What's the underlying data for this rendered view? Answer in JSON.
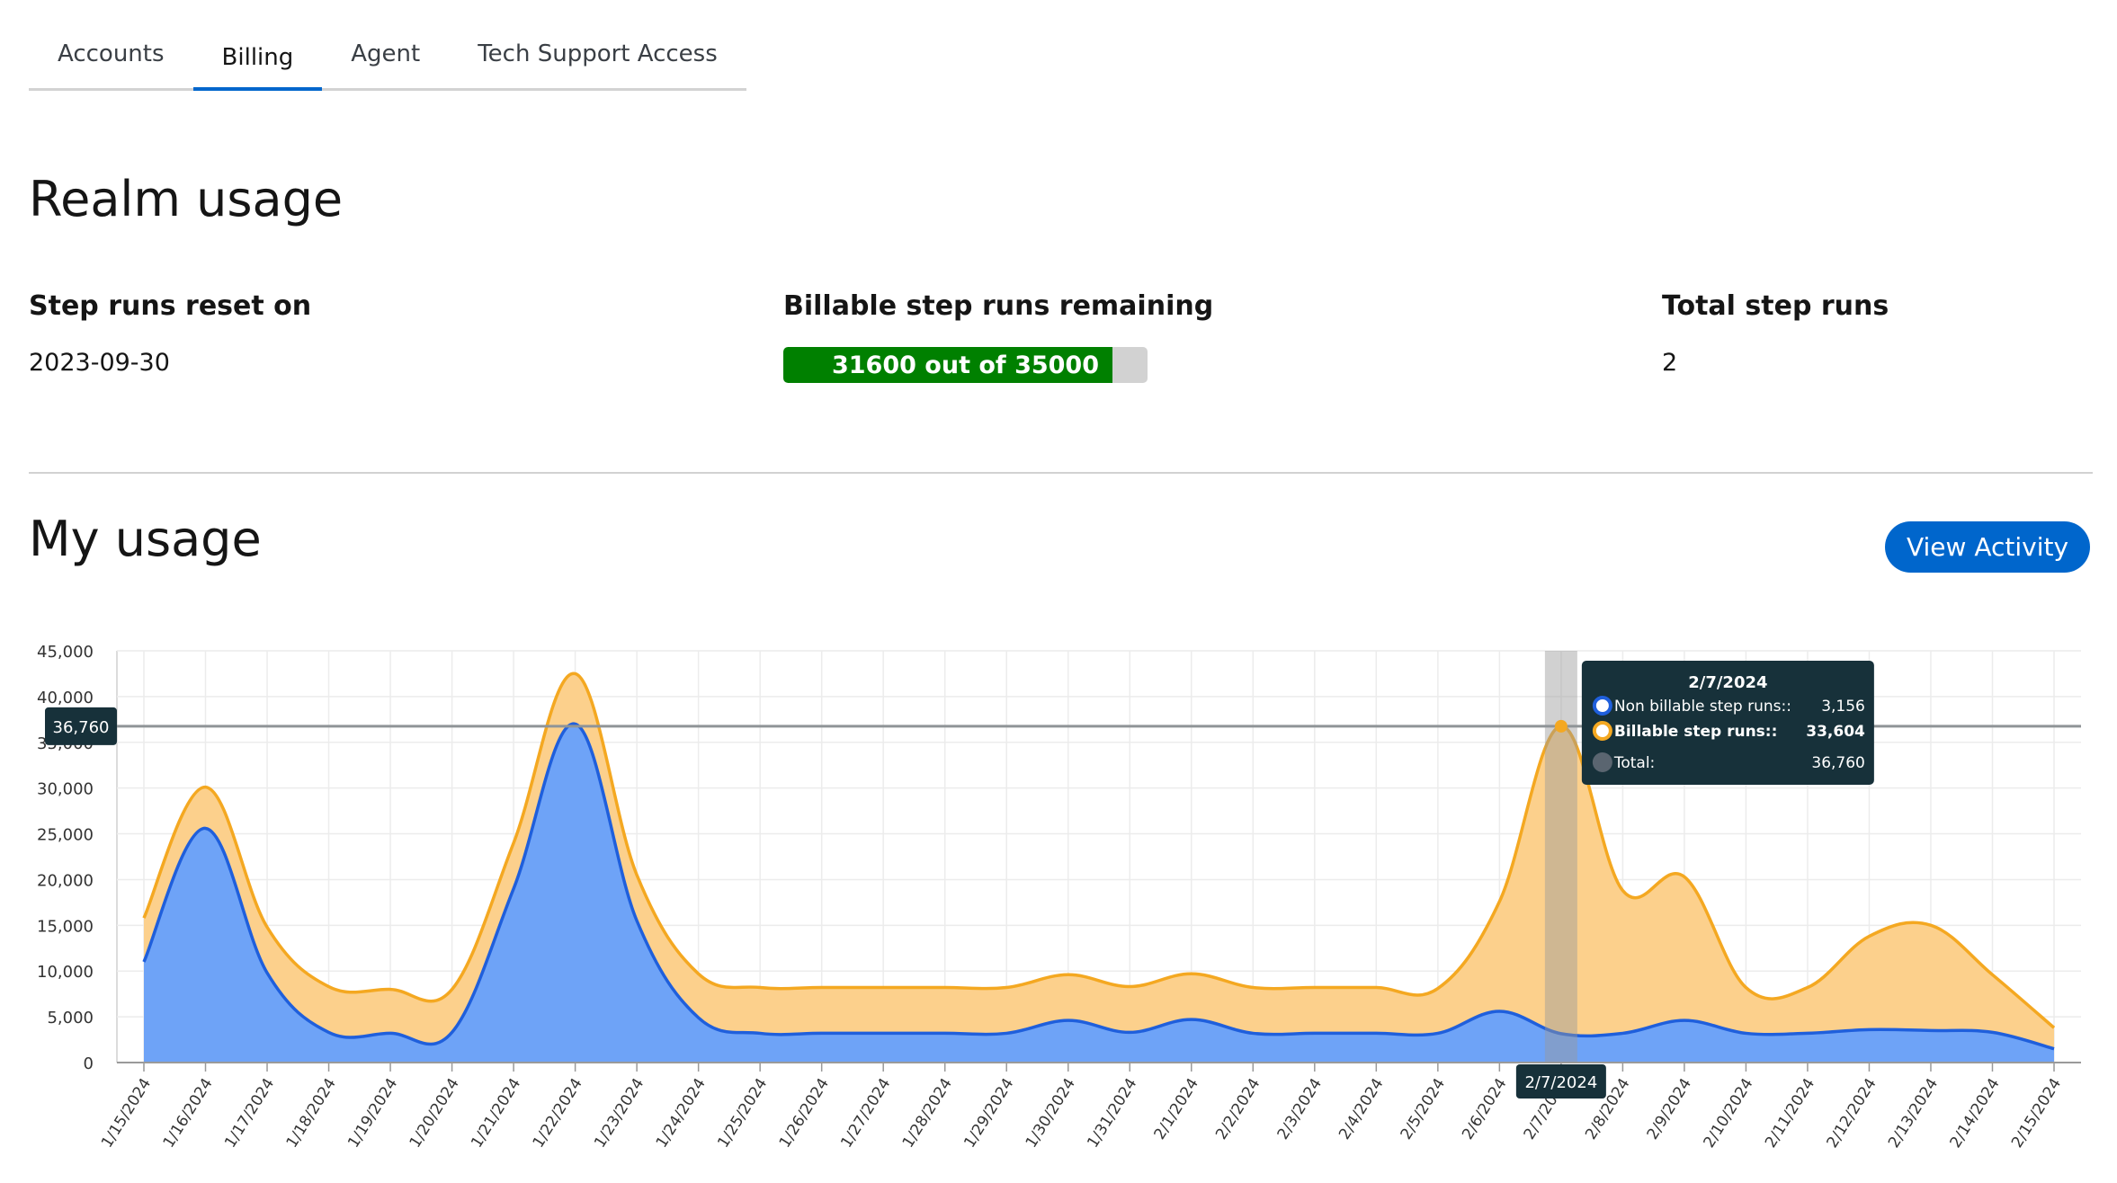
{
  "tabs": [
    {
      "label": "Accounts",
      "active": false
    },
    {
      "label": "Billing",
      "active": true
    },
    {
      "label": "Agent",
      "active": false
    },
    {
      "label": "Tech Support Access",
      "active": false
    }
  ],
  "realm": {
    "title": "Realm usage",
    "reset_label": "Step runs reset on",
    "reset_value": "2023-09-30",
    "billable_label": "Billable step runs remaining",
    "billable_text": "31600 out of 35000",
    "billable_remaining": 31600,
    "billable_total": 35000,
    "total_label": "Total step runs",
    "total_value": "2"
  },
  "my_usage": {
    "title": "My usage",
    "view_activity_label": "View Activity"
  },
  "colors": {
    "accent": "#0066cc",
    "progress": "#008000",
    "billable": "#f4a821",
    "non_billable": "#1f5fdc"
  },
  "chart_data": {
    "type": "area",
    "stacked": true,
    "categories": [
      "1/15/2024",
      "1/16/2024",
      "1/17/2024",
      "1/18/2024",
      "1/19/2024",
      "1/20/2024",
      "1/21/2024",
      "1/22/2024",
      "1/23/2024",
      "1/24/2024",
      "1/25/2024",
      "1/26/2024",
      "1/27/2024",
      "1/28/2024",
      "1/29/2024",
      "1/30/2024",
      "1/31/2024",
      "2/1/2024",
      "2/2/2024",
      "2/3/2024",
      "2/4/2024",
      "2/5/2024",
      "2/6/2024",
      "2/7/2024",
      "2/8/2024",
      "2/9/2024",
      "2/10/2024",
      "2/11/2024",
      "2/12/2024",
      "2/13/2024",
      "2/14/2024",
      "2/15/2024"
    ],
    "series": [
      {
        "name": "Non billable step runs:",
        "values": [
          11000,
          25600,
          9800,
          3300,
          3200,
          3300,
          19000,
          37000,
          15500,
          4900,
          3200,
          3200,
          3200,
          3200,
          3200,
          4600,
          3300,
          4700,
          3200,
          3200,
          3200,
          3200,
          5600,
          3156,
          3200,
          4600,
          3200,
          3200,
          3600,
          3500,
          3300,
          1500
        ]
      },
      {
        "name": "Billable step runs:",
        "values": [
          4800,
          4500,
          5000,
          5000,
          4800,
          4700,
          5000,
          5500,
          5000,
          4800,
          5000,
          5000,
          5000,
          5000,
          5000,
          5000,
          5000,
          5000,
          5000,
          5000,
          5000,
          4900,
          12000,
          33604,
          15600,
          15700,
          5000,
          5000,
          10200,
          11500,
          6300,
          2300
        ]
      }
    ],
    "ylim": [
      0,
      45000
    ],
    "yticks": [
      "0",
      "5,000",
      "10,000",
      "15,000",
      "20,000",
      "25,000",
      "30,000",
      "35,000",
      "40,000",
      "45,000"
    ],
    "grid": true,
    "hover": {
      "index": 23,
      "date": "2/7/2024",
      "y_value": 36760,
      "y_label": "36,760",
      "tooltip_title": "2/7/2024",
      "rows": [
        {
          "label": "Non billable step runs::",
          "value": "3,156",
          "color": "#1f5fdc",
          "bold": false
        },
        {
          "label": "Billable step runs::",
          "value": "33,604",
          "color": "#f4a821",
          "bold": true
        },
        {
          "label": "Total:",
          "value": "36,760",
          "color": "#5a6570",
          "bold": false
        }
      ]
    }
  }
}
